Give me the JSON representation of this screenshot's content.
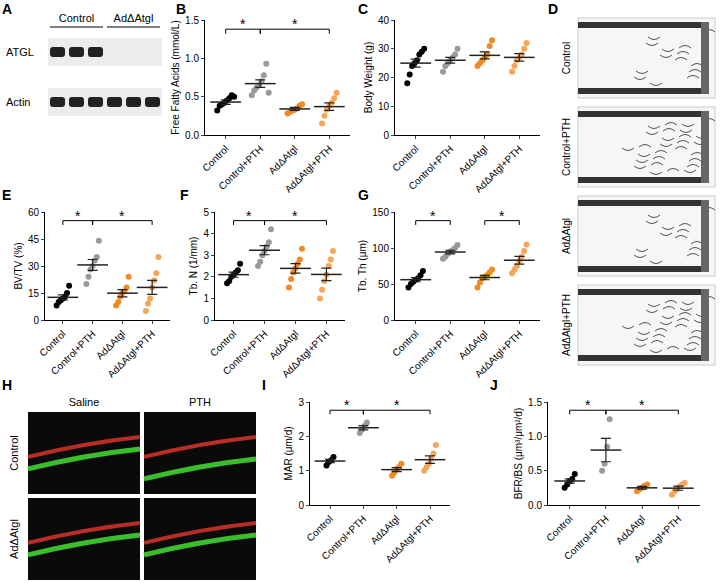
{
  "chart_data": [
    {
      "panel": "B",
      "type": "scatter",
      "marker": "circle",
      "grid": false,
      "ylabel": "Free Fatty Acids (mmol/L)",
      "categories": [
        "Control",
        "Control+PTH",
        "AdΔAtgl",
        "AdΔAtgl+PTH"
      ],
      "colors": [
        "#000000",
        "#9a9a9a",
        "#f08a24",
        "#f5a65b"
      ],
      "values": [
        [
          0.32,
          0.38,
          0.4,
          0.42,
          0.45,
          0.48,
          0.52,
          0.5
        ],
        [
          0.52,
          0.58,
          0.62,
          0.65,
          0.7,
          0.78,
          0.93,
          0.55
        ],
        [
          0.28,
          0.3,
          0.32,
          0.33,
          0.35,
          0.38,
          0.4
        ],
        [
          0.15,
          0.25,
          0.33,
          0.38,
          0.42,
          0.48,
          0.55
        ]
      ],
      "mean": [
        0.43,
        0.67,
        0.34,
        0.37
      ],
      "sem": [
        0.03,
        0.05,
        0.02,
        0.05
      ],
      "ylim": [
        0,
        1.5
      ],
      "yticks": [
        {
          "value": 0,
          "label": "0.0"
        },
        0.5,
        {
          "value": 1,
          "label": "1.0"
        },
        1.5
      ],
      "significance": [
        {
          "from": "Control",
          "to": "Control+PTH",
          "label": "*"
        },
        {
          "from": "Control+PTH",
          "to": "AdΔAtgl+PTH",
          "label": "*"
        }
      ]
    },
    {
      "panel": "C",
      "type": "scatter",
      "marker": "circle",
      "grid": false,
      "ylabel": "Body Weight (g)",
      "categories": [
        "Control",
        "Control+PTH",
        "AdΔAtgl",
        "AdΔAtgl+PTH"
      ],
      "colors": [
        "#000000",
        "#9a9a9a",
        "#f08a24",
        "#f5a65b"
      ],
      "values": [
        [
          18,
          21,
          24,
          25,
          26,
          28,
          29,
          30
        ],
        [
          22,
          24,
          25,
          26,
          27,
          28,
          30
        ],
        [
          24,
          25,
          26,
          27,
          28,
          31,
          33
        ],
        [
          22,
          24,
          26,
          27,
          28,
          30,
          32
        ]
      ],
      "mean": [
        25,
        26,
        27.7,
        27
      ],
      "sem": [
        1.4,
        1.0,
        1.2,
        1.3
      ],
      "ylim": [
        0,
        40
      ],
      "yticks": [
        0,
        10,
        20,
        30,
        40
      ],
      "significance": []
    },
    {
      "panel": "E",
      "type": "scatter",
      "marker": "circle",
      "grid": false,
      "ylabel": "BV/TV (%)",
      "categories": [
        "Control",
        "Control+PTH",
        "AdΔAtgl",
        "AdΔAtgl+PTH"
      ],
      "colors": [
        "#000000",
        "#9a9a9a",
        "#f08a24",
        "#f5a65b"
      ],
      "values": [
        [
          8,
          10,
          11,
          12,
          13,
          15,
          19
        ],
        [
          20,
          24,
          28,
          30,
          33,
          35,
          44
        ],
        [
          8,
          10,
          13,
          15,
          16,
          18,
          24
        ],
        [
          5,
          9,
          12,
          18,
          22,
          26,
          35
        ]
      ],
      "mean": [
        12.6,
        30.6,
        14.9,
        18.1
      ],
      "sem": [
        1.4,
        3.0,
        2.0,
        3.9
      ],
      "ylim": [
        0,
        60
      ],
      "yticks": [
        0,
        15,
        30,
        45,
        60
      ],
      "significance": [
        {
          "from": "Control",
          "to": "Control+PTH",
          "label": "*"
        },
        {
          "from": "Control+PTH",
          "to": "AdΔAtgl+PTH",
          "label": "*"
        }
      ]
    },
    {
      "panel": "F",
      "type": "scatter",
      "marker": "circle",
      "grid": false,
      "ylabel": "Tb. N (1/mm)",
      "categories": [
        "Control",
        "Control+PTH",
        "AdΔAtgl",
        "AdΔAtgl+PTH"
      ],
      "colors": [
        "#000000",
        "#9a9a9a",
        "#f08a24",
        "#f5a65b"
      ],
      "values": [
        [
          1.7,
          1.8,
          2.0,
          2.1,
          2.2,
          2.3,
          2.6
        ],
        [
          2.5,
          2.7,
          3.0,
          3.2,
          3.4,
          3.6,
          4.2
        ],
        [
          1.5,
          1.9,
          2.2,
          2.4,
          2.6,
          2.8,
          3.3
        ],
        [
          1.0,
          1.4,
          1.8,
          2.1,
          2.5,
          2.8,
          3.2
        ]
      ],
      "mean": [
        2.1,
        3.23,
        2.39,
        2.11
      ],
      "sem": [
        0.12,
        0.21,
        0.22,
        0.29
      ],
      "ylim": [
        0,
        5
      ],
      "yticks": [
        0,
        1,
        2,
        3,
        4,
        5
      ],
      "significance": [
        {
          "from": "Control",
          "to": "Control+PTH",
          "label": "*"
        },
        {
          "from": "Control+PTH",
          "to": "AdΔAtgl+PTH",
          "label": "*"
        }
      ]
    },
    {
      "panel": "G",
      "type": "scatter",
      "marker": "circle",
      "grid": false,
      "ylabel": "Tb. Th (μm)",
      "categories": [
        "Control",
        "Control+PTH",
        "AdΔAtgl",
        "AdΔAtgl+PTH"
      ],
      "colors": [
        "#000000",
        "#9a9a9a",
        "#f08a24",
        "#f5a65b"
      ],
      "values": [
        [
          45,
          50,
          53,
          56,
          58,
          62,
          68
        ],
        [
          85,
          88,
          92,
          95,
          97,
          100,
          104
        ],
        [
          45,
          52,
          58,
          60,
          62,
          66,
          70
        ],
        [
          65,
          70,
          75,
          82,
          88,
          96,
          105
        ]
      ],
      "mean": [
        56,
        94.4,
        59,
        83
      ],
      "sem": [
        2.9,
        2.5,
        3.1,
        5.5
      ],
      "ylim": [
        0,
        150
      ],
      "yticks": [
        0,
        50,
        100,
        150
      ],
      "significance": [
        {
          "from": "Control",
          "to": "Control+PTH",
          "label": "*"
        },
        {
          "from": "AdΔAtgl",
          "to": "AdΔAtgl+PTH",
          "label": "*"
        }
      ]
    },
    {
      "panel": "I",
      "type": "scatter",
      "marker": "circle",
      "grid": false,
      "ylabel": "MAR (μm/d)",
      "categories": [
        "Control",
        "Control+PTH",
        "AdΔAtgl",
        "AdΔAtgl+PTH"
      ],
      "colors": [
        "#000000",
        "#9a9a9a",
        "#f08a24",
        "#f5a65b"
      ],
      "values": [
        [
          1.15,
          1.25,
          1.3,
          1.4
        ],
        [
          2.1,
          2.2,
          2.3,
          2.4
        ],
        [
          0.85,
          0.95,
          1.05,
          1.1,
          1.2
        ],
        [
          1.0,
          1.1,
          1.2,
          1.35,
          1.5,
          1.75
        ]
      ],
      "mean": [
        1.28,
        2.25,
        1.03,
        1.32
      ],
      "sem": [
        0.05,
        0.06,
        0.06,
        0.11
      ],
      "ylim": [
        0,
        3
      ],
      "yticks": [
        0,
        1,
        2,
        3
      ],
      "significance": [
        {
          "from": "Control",
          "to": "Control+PTH",
          "label": "*"
        },
        {
          "from": "Control+PTH",
          "to": "AdΔAtgl+PTH",
          "label": "*"
        }
      ]
    },
    {
      "panel": "J",
      "type": "scatter",
      "marker": "circle",
      "grid": false,
      "ylabel": "BFR/BS (μm³/μm²/d)",
      "categories": [
        "Control",
        "Control+PTH",
        "AdΔAtgl",
        "AdΔAtgl+PTH"
      ],
      "colors": [
        "#000000",
        "#9a9a9a",
        "#f08a24",
        "#f5a65b"
      ],
      "values": [
        [
          0.25,
          0.3,
          0.35,
          0.38,
          0.45
        ],
        [
          0.5,
          0.6,
          0.85,
          1.25
        ],
        [
          0.2,
          0.23,
          0.25,
          0.28,
          0.3
        ],
        [
          0.15,
          0.2,
          0.23,
          0.27,
          0.3,
          0.32
        ]
      ],
      "mean": [
        0.35,
        0.8,
        0.25,
        0.245
      ],
      "sem": [
        0.03,
        0.17,
        0.02,
        0.03
      ],
      "ylim": [
        0,
        1.5
      ],
      "yticks": [
        {
          "value": 0,
          "label": "0.0"
        },
        0.5,
        {
          "value": 1,
          "label": "1.0"
        },
        1.5
      ],
      "significance": [
        {
          "from": "Control",
          "to": "Control+PTH",
          "label": "*"
        },
        {
          "from": "Control+PTH",
          "to": "AdΔAtgl+PTH",
          "label": "*"
        }
      ]
    }
  ],
  "images": [
    {
      "panel": "A",
      "columns": [
        {
          "label": "Control",
          "lanes": 3
        },
        {
          "label": "AdΔAtgl",
          "lanes": 3
        }
      ],
      "rows": [
        {
          "label": "ATGL",
          "bands": [
            1,
            1,
            1,
            0,
            0,
            0
          ]
        },
        {
          "label": "Actin",
          "bands": [
            1,
            1,
            1,
            1,
            1,
            1
          ]
        }
      ]
    },
    {
      "panel": "D",
      "rows": [
        "Control",
        "Control+PTH",
        "AdΔAtgl",
        "AdΔAtgl+PTH"
      ]
    },
    {
      "panel": "H",
      "columns": [
        "Saline",
        "PTH"
      ],
      "rows": [
        "Control",
        "AdΔAtgl"
      ]
    }
  ]
}
